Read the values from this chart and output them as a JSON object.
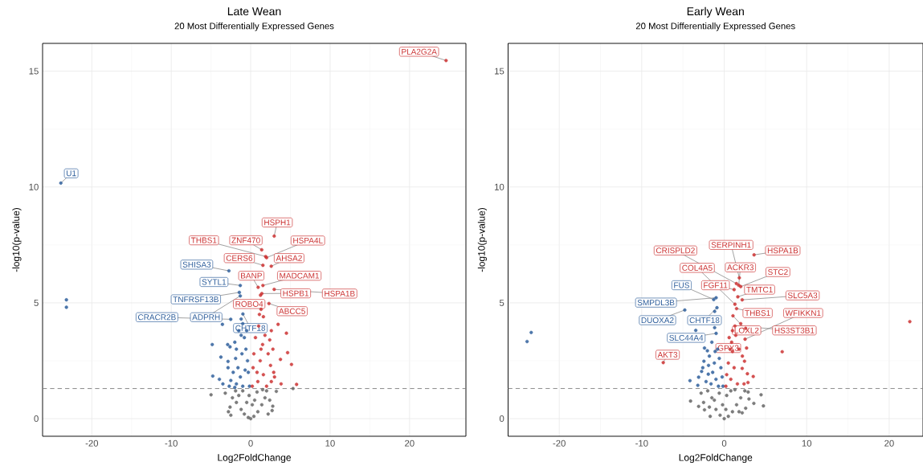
{
  "chart_data": [
    {
      "type": "scatter",
      "title": "Late Wean",
      "subtitle": "20 Most Differentially Expressed Genes",
      "xlabel": "Log2FoldChange",
      "ylabel": "-log10(p-value)",
      "xlim": [
        -26.2,
        27.1
      ],
      "ylim": [
        -0.76,
        16.2
      ],
      "xticks": [
        -20,
        -10,
        0,
        10,
        20
      ],
      "yticks": [
        0,
        5,
        10,
        15
      ],
      "grid": true,
      "ref_lines": [
        {
          "axis": "y",
          "value": 1.3,
          "color": "#808080",
          "line_style": "dashed"
        }
      ],
      "series": [
        {
          "color": "#666666",
          "x": [
            -4.99,
            3.23,
            5.33,
            2.78,
            -2.5,
            -2.6,
            -2.3,
            -1.9,
            -1.5,
            -1.8,
            -1.2,
            -0.8,
            -0.3,
            0,
            0.4,
            0.9,
            1.4,
            1.8,
            2.0,
            1.5,
            2.4,
            2.7,
            -0.5,
            0.5,
            -1.0,
            0.8,
            -2.8,
            2.2,
            -0.2,
            0.2,
            -3.2
          ],
          "values": [
            1.03,
            1.18,
            1.3,
            0.54,
            0.15,
            0.5,
            0.9,
            1.2,
            1.0,
            0.7,
            0.4,
            0.2,
            0.05,
            0,
            0.1,
            0.3,
            0.6,
            0.9,
            1.2,
            1.25,
            0.8,
            0.35,
            0.7,
            0.8,
            1.2,
            1.15,
            0.3,
            0.2,
            1.0,
            0.6,
            1.1
          ]
        },
        {
          "color": "#2f5f9c",
          "x": [
            -23.9,
            -23.2,
            -23.2,
            -2.74,
            -1.31,
            -1.43,
            -1.31,
            -0.98,
            -2.51,
            -3.56,
            -1.2,
            -1.0,
            -4.84,
            -3.75,
            -4.77,
            -3.94,
            -2.85,
            -2.85,
            -2.5,
            -2.7,
            -3.5,
            -2.6,
            -2.9,
            -2.0,
            -1.8,
            -1.5,
            -1.2,
            -0.8,
            -0.6,
            -0.4,
            -0.3,
            -0.15,
            -1.9,
            -1.6,
            -1.3,
            -1.8,
            -1.0,
            -0.7,
            -1.1,
            -0.5,
            -2.2,
            -2.0
          ],
          "values": [
            10.17,
            5.13,
            4.81,
            6.38,
            5.75,
            5.45,
            5.3,
            4.52,
            4.29,
            4.07,
            4.3,
            4.1,
            3.2,
            2.66,
            1.84,
            1.7,
            2.47,
            2.2,
            1.65,
            1.4,
            1.5,
            3.1,
            3.2,
            3.3,
            3.0,
            3.8,
            3.6,
            3.5,
            3.0,
            2.5,
            2.0,
            1.4,
            2.6,
            2.2,
            1.8,
            1.5,
            1.4,
            2.1,
            2.8,
            3.8,
            2.0,
            1.35
          ]
        },
        {
          "color": "#cc3333",
          "x": [
            24.6,
            2.96,
            1.39,
            1.88,
            2.0,
            1.54,
            2.59,
            2.96,
            0.94,
            1.54,
            1.24,
            1.4,
            1.31,
            2.3,
            1.1,
            1.6,
            3.45,
            4.5,
            4.65,
            3.75,
            5.14,
            3.83,
            5.78,
            2.6,
            2.4,
            2.8,
            2.2,
            2.5,
            2.9,
            2.6,
            3.0,
            1.8,
            1.5,
            1.0,
            0.6,
            0.4,
            0.3,
            0.2,
            1.2,
            1.6,
            0.9,
            2.0,
            1.3,
            0.8
          ],
          "values": [
            15.46,
            7.88,
            7.29,
            7.0,
            6.95,
            6.62,
            6.58,
            5.58,
            5.67,
            5.75,
            5.33,
            5.4,
            4.72,
            4.97,
            4.5,
            4.4,
            4.07,
            3.69,
            2.85,
            2.56,
            2.34,
            1.5,
            1.48,
            3.8,
            3.4,
            3.0,
            2.8,
            2.3,
            2.0,
            1.6,
            1.8,
            3.6,
            3.2,
            4.0,
            3.5,
            2.8,
            2.2,
            1.4,
            2.5,
            1.9,
            1.6,
            1.4,
            3.0,
            2.0
          ]
        }
      ],
      "annotations": [
        {
          "text": "PLA2G2A",
          "x": 24.6,
          "y": 15.46
        },
        {
          "text": "U1",
          "x": -23.9,
          "y": 10.17
        },
        {
          "text": "HSPH1",
          "x": 2.96,
          "y": 7.88
        },
        {
          "text": "THBS1",
          "x": 1.88,
          "y": 7.0
        },
        {
          "text": "ZNF470",
          "x": 1.39,
          "y": 7.29
        },
        {
          "text": "HSPA4L",
          "x": 2.0,
          "y": 6.95
        },
        {
          "text": "CERS6",
          "x": 1.54,
          "y": 6.62
        },
        {
          "text": "AHSA2",
          "x": 2.59,
          "y": 6.58
        },
        {
          "text": "SHISA3",
          "x": -2.74,
          "y": 6.38
        },
        {
          "text": "BANP",
          "x": 0.94,
          "y": 5.67
        },
        {
          "text": "MADCAM1",
          "x": 1.54,
          "y": 5.75
        },
        {
          "text": "SYTL1",
          "x": -1.31,
          "y": 5.75
        },
        {
          "text": "HSPB1",
          "x": 1.4,
          "y": 5.4
        },
        {
          "text": "HSPA1B",
          "x": 2.96,
          "y": 5.58
        },
        {
          "text": "TNFRSF13B",
          "x": -1.43,
          "y": 5.45
        },
        {
          "text": "ROBO4",
          "x": 1.31,
          "y": 4.72
        },
        {
          "text": "ABCC5",
          "x": 2.3,
          "y": 4.97
        },
        {
          "text": "CRACR2B",
          "x": -2.51,
          "y": 4.29
        },
        {
          "text": "ADPRH",
          "x": -1.31,
          "y": 5.3
        },
        {
          "text": "CHTF18",
          "x": -0.98,
          "y": 4.52
        }
      ]
    },
    {
      "type": "scatter",
      "title": "Early Wean",
      "subtitle": "20 Most Differentially Expressed Genes",
      "xlabel": "Log2FoldChange",
      "ylabel": "-log10(p-value)",
      "xlim": [
        -26.2,
        24.1
      ],
      "ylim": [
        -0.76,
        16.2
      ],
      "xticks": [
        -20,
        -10,
        0,
        10,
        20
      ],
      "yticks": [
        0,
        5,
        10,
        15
      ],
      "grid": true,
      "ref_lines": [
        {
          "axis": "y",
          "value": 1.3,
          "color": "#808080",
          "line_style": "dashed"
        }
      ],
      "series": [
        {
          "color": "#666666",
          "x": [
            -4.08,
            -3.1,
            -2.39,
            4.47,
            4.75,
            3.59,
            2.18,
            -2.8,
            -2.0,
            -1.5,
            -1.0,
            -0.5,
            0,
            0.5,
            1.0,
            1.5,
            2.0,
            2.5,
            3.0,
            -1.8,
            -1.2,
            -0.6,
            0.3,
            0.8,
            1.3,
            1.8,
            2.6,
            -2.5,
            -1.7,
            2.9,
            -0.2,
            0.2
          ],
          "values": [
            0.76,
            0.53,
            0.38,
            1.03,
            0.55,
            0.66,
            0.25,
            1.1,
            1.2,
            0.9,
            0.4,
            0.15,
            0,
            0.1,
            0.3,
            0.6,
            0.9,
            1.2,
            0.85,
            0.5,
            0.8,
            1.1,
            1.0,
            1.2,
            1.25,
            0.3,
            0.45,
            0.7,
            0.1,
            1.15,
            0.6,
            0.4
          ]
        },
        {
          "color": "#2f5f9c",
          "x": [
            -23.4,
            -23.9,
            -0.98,
            -1.27,
            -4.78,
            -0.88,
            -1.16,
            -1.16,
            -0.98,
            -2.39,
            -2.04,
            -2.46,
            -4.15,
            -3.2,
            -3.1,
            -2.74,
            -1.93,
            -3.45,
            -1.5,
            -1.8,
            -1.2,
            -0.8,
            -0.6,
            -0.4,
            -0.25,
            -0.15,
            -1.6,
            -2.2,
            -1.4,
            -1.0,
            -0.7,
            -2.6,
            -1.9,
            -1.1
          ],
          "values": [
            3.72,
            3.33,
            5.22,
            5.14,
            4.69,
            4.79,
            4.63,
            3.93,
            3.68,
            3.05,
            2.93,
            2.48,
            1.64,
            1.44,
            1.79,
            2.04,
            1.92,
            3.81,
            3.3,
            2.7,
            2.4,
            3.0,
            2.6,
            2.2,
            1.8,
            1.4,
            1.5,
            1.6,
            2.0,
            1.7,
            1.4,
            2.2,
            2.3,
            2.9
          ]
        },
        {
          "color": "#cc3333",
          "x": [
            22.5,
            7.03,
            3.62,
            1.48,
            1.76,
            2.18,
            1.3,
            1.06,
            1.3,
            2.71,
            2.53,
            1.83,
            1.2,
            1.65,
            2.0,
            1.5,
            0.9,
            -7.39,
            2.81,
            3.52,
            2.88,
            2.46,
            2.18,
            1.0,
            0.7,
            0.5,
            0.3,
            0.2,
            1.4,
            1.8,
            2.2,
            1.2,
            0.8,
            1.6,
            2.4,
            1.0,
            0.6,
            2.0,
            2.6
          ],
          "values": [
            4.19,
            2.89,
            7.07,
            5.83,
            5.76,
            5.13,
            4.94,
            4.44,
            4.0,
            3.05,
            3.43,
            6.08,
            5.57,
            5.26,
            5.7,
            4.75,
            3.3,
            2.42,
            1.94,
            1.82,
            1.56,
            2.48,
            2.17,
            3.8,
            3.0,
            2.4,
            1.9,
            1.4,
            3.6,
            3.0,
            2.7,
            2.2,
            1.7,
            1.5,
            1.5,
            2.9,
            3.5,
            4.1,
            3.9
          ]
        }
      ],
      "annotations": [
        {
          "text": "CRISPLD2",
          "x": 1.48,
          "y": 5.83
        },
        {
          "text": "SERPINH1",
          "x": 1.83,
          "y": 6.08
        },
        {
          "text": "HSPA1B",
          "x": 3.62,
          "y": 7.07
        },
        {
          "text": "COL4A5",
          "x": 1.3,
          "y": 4.94
        },
        {
          "text": "ACKR3",
          "x": 1.76,
          "y": 5.76
        },
        {
          "text": "STC2",
          "x": 2.0,
          "y": 5.7
        },
        {
          "text": "FUS",
          "x": -1.27,
          "y": 5.14
        },
        {
          "text": "FGF11",
          "x": 1.2,
          "y": 5.57
        },
        {
          "text": "TMTC1",
          "x": 1.65,
          "y": 5.26
        },
        {
          "text": "SLC5A3",
          "x": 2.18,
          "y": 5.13
        },
        {
          "text": "SMPDL3B",
          "x": -0.98,
          "y": 5.22
        },
        {
          "text": "THBS1",
          "x": 1.5,
          "y": 4.75
        },
        {
          "text": "WFIKKN1",
          "x": 2.53,
          "y": 3.43
        },
        {
          "text": "DUOXA2",
          "x": -4.78,
          "y": 4.69
        },
        {
          "text": "CHTF18",
          "x": -0.88,
          "y": 4.79
        },
        {
          "text": "LOXL2",
          "x": 1.06,
          "y": 4.44
        },
        {
          "text": "HS3ST3B1",
          "x": 1.3,
          "y": 4.0
        },
        {
          "text": "SLC44A4",
          "x": -0.98,
          "y": 3.68
        },
        {
          "text": "GPX3",
          "x": 0.9,
          "y": 3.3
        },
        {
          "text": "AKT3",
          "x": -7.39,
          "y": 2.42
        }
      ]
    }
  ]
}
